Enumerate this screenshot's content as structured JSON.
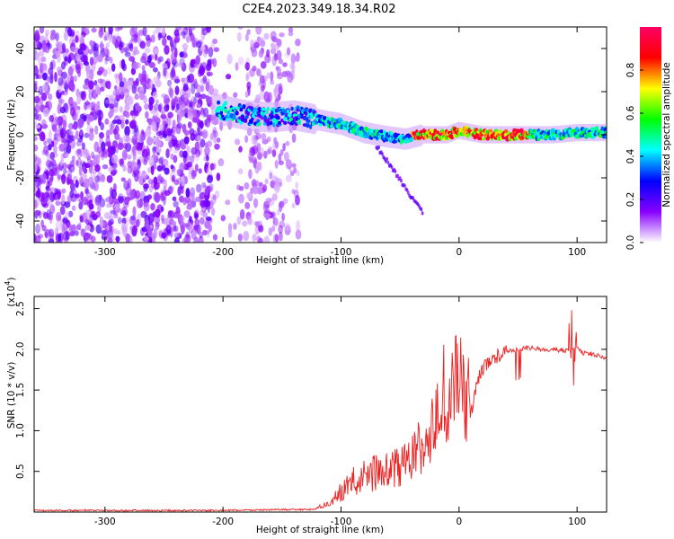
{
  "title": "C2E4.2023.349.18.34.R02",
  "colorbar": {
    "label": "Normalized spectral amplitude",
    "ticks": [
      {
        "v": 0.0,
        "label": "0.0"
      },
      {
        "v": 0.2,
        "label": "0.2"
      },
      {
        "v": 0.4,
        "label": "0.4"
      },
      {
        "v": 0.6,
        "label": "0.6"
      },
      {
        "v": 0.8,
        "label": "0.8"
      }
    ],
    "range": [
      0,
      1
    ],
    "colors": [
      "#ffffff",
      "#8800ff",
      "#0000ff",
      "#00ffff",
      "#00ff00",
      "#ffff00",
      "#ff0000",
      "#ff0066"
    ]
  },
  "chart_data": [
    {
      "type": "heatmap",
      "xlabel": "Height of straight line (km)",
      "ylabel": "Frequency (Hz)",
      "xlim": [
        -360,
        125
      ],
      "ylim": [
        -50,
        50
      ],
      "xticks": [
        {
          "v": -300,
          "label": "-300"
        },
        {
          "v": -200,
          "label": "-200"
        },
        {
          "v": -100,
          "label": "-100"
        },
        {
          "v": 0,
          "label": "0"
        },
        {
          "v": 100,
          "label": "100"
        }
      ],
      "yticks": [
        {
          "v": -40,
          "label": "-40"
        },
        {
          "v": -20,
          "label": "-20"
        },
        {
          "v": 0,
          "label": "0"
        },
        {
          "v": 20,
          "label": "20"
        },
        {
          "v": 40,
          "label": "40"
        }
      ],
      "ridge": {
        "x": [
          -205,
          -180,
          -160,
          -140,
          -120,
          -100,
          -80,
          -60,
          -45,
          -30,
          -20,
          -10,
          -5,
          0,
          20,
          50,
          80,
          100,
          125
        ],
        "y": [
          12,
          9,
          8,
          9,
          7,
          5,
          1,
          -1,
          -2,
          0,
          0,
          0,
          1,
          2,
          0,
          0,
          0,
          1,
          1
        ]
      }
    },
    {
      "type": "line",
      "xlabel": "Height of straight line (km)",
      "ylabel": "SNR (10 * v/v)",
      "multiplier": "(x10",
      "multiplier_exp": "4",
      "multiplier_close": ")",
      "xlim": [
        -360,
        125
      ],
      "ylim": [
        0,
        2.65
      ],
      "xticks": [
        {
          "v": -300,
          "label": "-300"
        },
        {
          "v": -200,
          "label": "-200"
        },
        {
          "v": -100,
          "label": "-100"
        },
        {
          "v": 0,
          "label": "0"
        },
        {
          "v": 100,
          "label": "100"
        }
      ],
      "yticks": [
        {
          "v": 0.5,
          "label": "0.5"
        },
        {
          "v": 1.0,
          "label": "1.0"
        },
        {
          "v": 1.5,
          "label": "1.5"
        },
        {
          "v": 2.0,
          "label": "2.0"
        },
        {
          "v": 2.5,
          "label": "2.5"
        }
      ],
      "series": [
        {
          "color": "#ee2222",
          "x": [
            -360,
            -300,
            -250,
            -200,
            -150,
            -125,
            -110,
            -100,
            -90,
            -80,
            -70,
            -60,
            -50,
            -40,
            -35,
            -30,
            -25,
            -20,
            -15,
            -10,
            -5,
            0,
            5,
            10,
            15,
            20,
            25,
            30,
            40,
            50,
            60,
            70,
            80,
            90,
            95,
            100,
            105,
            110,
            120,
            125
          ],
          "y": [
            0.02,
            0.02,
            0.02,
            0.02,
            0.03,
            0.03,
            0.08,
            0.2,
            0.3,
            0.35,
            0.4,
            0.4,
            0.45,
            0.55,
            0.6,
            0.7,
            0.9,
            1.05,
            1.1,
            1.2,
            1.35,
            1.55,
            1.3,
            1.2,
            1.6,
            1.75,
            1.85,
            1.9,
            1.97,
            2.0,
            2.02,
            2.0,
            2.0,
            1.98,
            2.0,
            2.02,
            1.95,
            1.95,
            1.92,
            1.9
          ]
        }
      ]
    }
  ]
}
